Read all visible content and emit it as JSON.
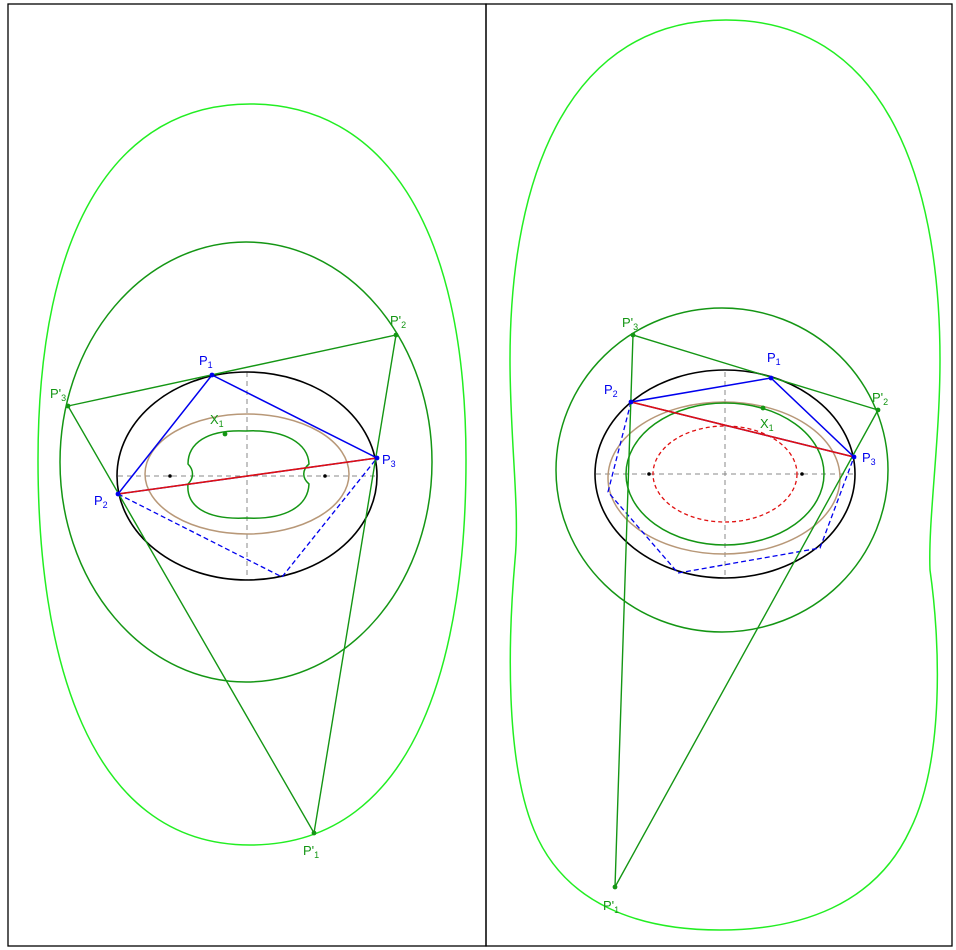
{
  "panels": [
    {
      "id": "left",
      "labels": {
        "P1": {
          "base": "P",
          "sub": "1"
        },
        "P2": {
          "base": "P",
          "sub": "2"
        },
        "P3": {
          "base": "P",
          "sub": "3"
        },
        "P1p": {
          "base": "P'",
          "sub": "1"
        },
        "P2p": {
          "base": "P'",
          "sub": "2"
        },
        "P3p": {
          "base": "P'",
          "sub": "3"
        },
        "X1": {
          "base": "X",
          "sub": "1"
        }
      }
    },
    {
      "id": "right",
      "labels": {
        "P1": {
          "base": "P",
          "sub": "1"
        },
        "P2": {
          "base": "P",
          "sub": "2"
        },
        "P3": {
          "base": "P",
          "sub": "3"
        },
        "P1p": {
          "base": "P'",
          "sub": "1"
        },
        "P2p": {
          "base": "P'",
          "sub": "2"
        },
        "P3p": {
          "base": "P'",
          "sub": "3"
        },
        "X1": {
          "base": "X",
          "sub": "1"
        }
      }
    }
  ],
  "colors": {
    "ellipse": "#000000",
    "triangle": "#0000ee",
    "chord": "#e01010",
    "locus_dark": "#149614",
    "locus_light": "#22ee22",
    "caustic": "#b89878",
    "inner_dashed": "#e01010",
    "axes": "#888888",
    "label_green": "#149614",
    "label_blue": "#0000ee"
  }
}
